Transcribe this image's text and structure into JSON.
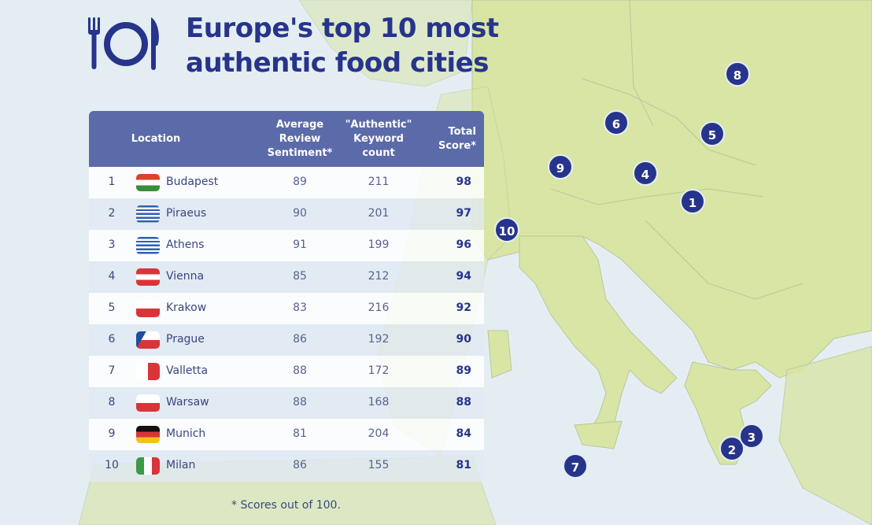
{
  "title": {
    "line1": "Europe's top 10 most",
    "line2": "authentic food cities"
  },
  "logo_icon": "fork-plate-knife-icon",
  "colors": {
    "accent": "#27348b",
    "header": "#5b6aa8",
    "land": "#d8e5a4",
    "sea": "#e4eef2"
  },
  "table": {
    "headers": {
      "location": "Location",
      "sentiment": "Average Review Sentiment*",
      "keyword": "\"Authentic\" Keyword count",
      "total": "Total Score*"
    },
    "rows": [
      {
        "rank": "1",
        "city": "Budapest",
        "country_flag": "hungary",
        "sentiment": "89",
        "keyword": "211",
        "total": "98"
      },
      {
        "rank": "2",
        "city": "Piraeus",
        "country_flag": "greece",
        "sentiment": "90",
        "keyword": "201",
        "total": "97"
      },
      {
        "rank": "3",
        "city": "Athens",
        "country_flag": "greece",
        "sentiment": "91",
        "keyword": "199",
        "total": "96"
      },
      {
        "rank": "4",
        "city": "Vienna",
        "country_flag": "austria",
        "sentiment": "85",
        "keyword": "212",
        "total": "94"
      },
      {
        "rank": "5",
        "city": "Krakow",
        "country_flag": "poland",
        "sentiment": "83",
        "keyword": "216",
        "total": "92"
      },
      {
        "rank": "6",
        "city": "Prague",
        "country_flag": "czechia",
        "sentiment": "86",
        "keyword": "192",
        "total": "90"
      },
      {
        "rank": "7",
        "city": "Valletta",
        "country_flag": "malta",
        "sentiment": "88",
        "keyword": "172",
        "total": "89"
      },
      {
        "rank": "8",
        "city": "Warsaw",
        "country_flag": "poland",
        "sentiment": "88",
        "keyword": "168",
        "total": "88"
      },
      {
        "rank": "9",
        "city": "Munich",
        "country_flag": "germany",
        "sentiment": "81",
        "keyword": "204",
        "total": "84"
      },
      {
        "rank": "10",
        "city": "Milan",
        "country_flag": "italy",
        "sentiment": "86",
        "keyword": "155",
        "total": "81"
      }
    ]
  },
  "footnote": "* Scores out of 100.",
  "map_markers": [
    "8",
    "6",
    "5",
    "9",
    "4",
    "1",
    "10",
    "7",
    "2",
    "3"
  ]
}
